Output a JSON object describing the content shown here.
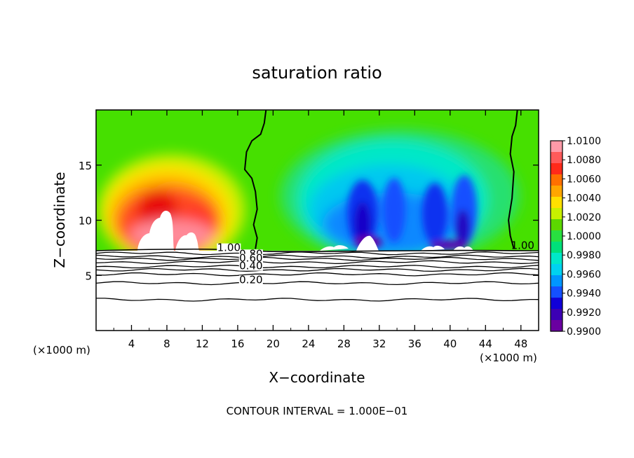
{
  "chart_data": {
    "type": "contour",
    "title": "saturation ratio",
    "xlabel": "X−coordinate",
    "ylabel": "Z−coordinate",
    "x_unit_left": "(×1000 m)",
    "x_unit_right": "(×1000 m)",
    "footer": "CONTOUR INTERVAL = 1.000E−01",
    "xlim": [
      0,
      50
    ],
    "ylim": [
      0,
      20
    ],
    "x_ticks": [
      "4",
      "8",
      "12",
      "16",
      "20",
      "24",
      "28",
      "32",
      "36",
      "40",
      "44",
      "48"
    ],
    "x_tick_values": [
      4,
      8,
      12,
      16,
      20,
      24,
      28,
      32,
      36,
      40,
      44,
      48
    ],
    "y_ticks": [
      "5",
      "10",
      "15"
    ],
    "y_tick_values": [
      5,
      10,
      15
    ],
    "colorbar": {
      "min": 0.99,
      "max": 1.01,
      "labels": [
        "1.0100",
        "1.0080",
        "1.0060",
        "1.0040",
        "1.0020",
        "1.0000",
        "0.9980",
        "0.9960",
        "0.9940",
        "0.9920",
        "0.9900"
      ],
      "label_values": [
        1.01,
        1.008,
        1.006,
        1.004,
        1.002,
        1.0,
        0.998,
        0.996,
        0.994,
        0.992,
        0.99
      ],
      "colors": [
        "#ff9aa8",
        "#ff5a5a",
        "#ff2a1a",
        "#ff7000",
        "#ffa600",
        "#ffe000",
        "#c8f000",
        "#5cd800",
        "#28e040",
        "#00e07a",
        "#00e8c8",
        "#00d2f0",
        "#0096ff",
        "#1450ff",
        "#1000d8",
        "#3c00b4",
        "#6a00a0"
      ]
    },
    "contour_labels": [
      {
        "text": "1.00",
        "x": 15.0,
        "z": 7.2
      },
      {
        "text": "0.80",
        "x": 17.5,
        "z": 6.65
      },
      {
        "text": "0.60",
        "x": 17.5,
        "z": 6.25
      },
      {
        "text": "0.40",
        "x": 17.5,
        "z": 5.55
      },
      {
        "text": "0.20",
        "x": 17.5,
        "z": 4.3
      },
      {
        "text": "1.00",
        "x": 48.2,
        "z": 7.4
      }
    ],
    "contour_1_00_left": [
      [
        19.2,
        20.0
      ],
      [
        19.0,
        18.8
      ],
      [
        18.6,
        17.8
      ],
      [
        17.6,
        17.2
      ],
      [
        17.0,
        16.2
      ],
      [
        16.8,
        14.6
      ],
      [
        17.6,
        13.8
      ],
      [
        18.0,
        12.6
      ],
      [
        18.2,
        11.0
      ],
      [
        17.8,
        9.6
      ],
      [
        18.2,
        8.4
      ],
      [
        18.0,
        7.4
      ]
    ],
    "contour_1_00_right": [
      [
        47.6,
        20.0
      ],
      [
        47.4,
        18.6
      ],
      [
        47.0,
        17.6
      ],
      [
        46.8,
        16.0
      ],
      [
        47.2,
        14.4
      ],
      [
        47.0,
        12.0
      ],
      [
        46.6,
        10.0
      ],
      [
        46.8,
        8.6
      ],
      [
        47.2,
        7.4
      ]
    ],
    "stable_contour_levels_z": [
      7.0,
      6.7,
      6.5,
      6.2,
      5.8,
      5.5,
      5.1,
      4.3,
      2.8
    ]
  }
}
